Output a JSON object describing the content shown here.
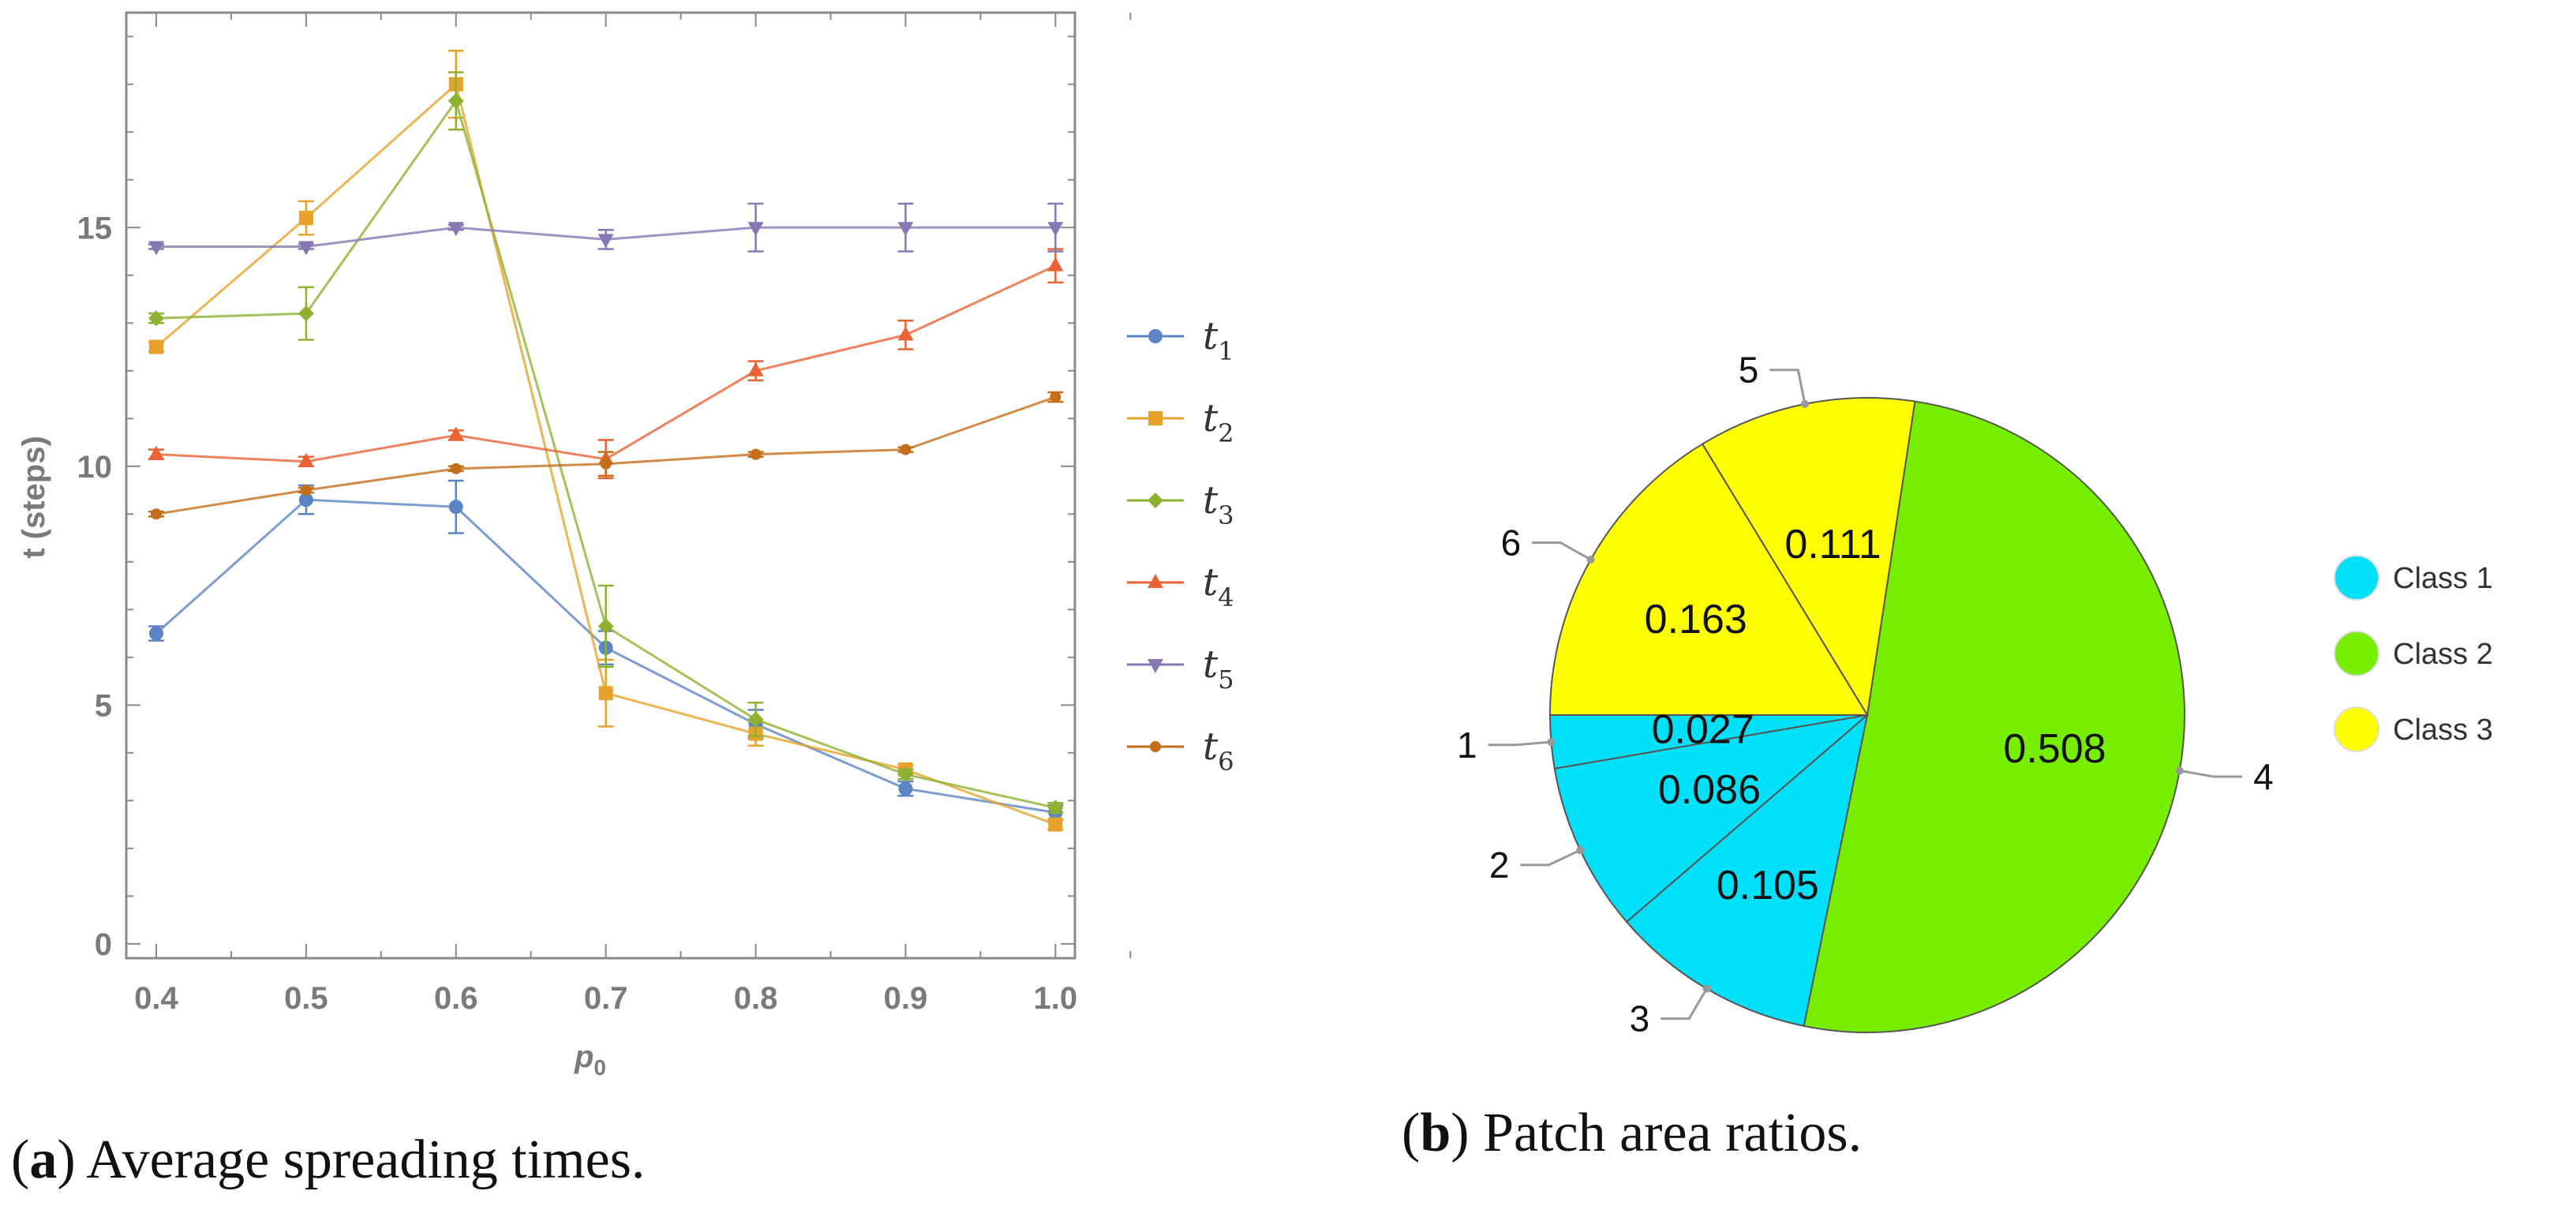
{
  "captions": {
    "a": {
      "letter": "a",
      "text": "Average spreading times."
    },
    "b": {
      "letter": "b",
      "text": "Patch area ratios."
    }
  },
  "chart_data": [
    {
      "type": "line",
      "xlabel_main": "p",
      "xlabel_sub": "0",
      "ylabel": "t (steps)",
      "x": [
        0.4,
        0.5,
        0.6,
        0.7,
        0.8,
        0.9,
        1.0
      ],
      "xticklabels": [
        "0.4",
        "0.5",
        "0.6",
        "0.7",
        "0.8",
        "0.9",
        "1.0"
      ],
      "yticks": [
        0,
        5,
        10,
        15
      ],
      "xlim": [
        0.38,
        1.013
      ],
      "ylim": [
        -0.3,
        19.5
      ],
      "series": [
        {
          "name": "t",
          "sub": "1",
          "color": "#5b84c4",
          "marker": "circle",
          "values": [
            6.5,
            9.3,
            9.15,
            6.2,
            4.6,
            3.25,
            2.75
          ],
          "err": [
            0.15,
            0.3,
            0.55,
            0.35,
            0.3,
            0.15,
            0.15
          ]
        },
        {
          "name": "t",
          "sub": "2",
          "color": "#e7a22b",
          "marker": "square",
          "values": [
            12.5,
            15.2,
            18.0,
            5.25,
            4.4,
            3.65,
            2.5
          ],
          "err": [
            0.1,
            0.35,
            0.7,
            0.7,
            0.25,
            0.1,
            0.1
          ]
        },
        {
          "name": "t",
          "sub": "3",
          "color": "#8fb131",
          "marker": "diamond",
          "values": [
            13.1,
            13.2,
            17.65,
            6.65,
            4.7,
            3.55,
            2.85
          ],
          "err": [
            0.1,
            0.55,
            0.6,
            0.85,
            0.35,
            0.1,
            0.1
          ]
        },
        {
          "name": "t",
          "sub": "4",
          "color": "#eb6235",
          "marker": "triangle-up",
          "values": [
            10.25,
            10.1,
            10.65,
            10.15,
            12.0,
            12.75,
            14.2
          ],
          "err": [
            0.1,
            0.1,
            0.1,
            0.4,
            0.2,
            0.3,
            0.35
          ]
        },
        {
          "name": "t",
          "sub": "5",
          "color": "#8778b3",
          "marker": "triangle-down",
          "values": [
            14.6,
            14.6,
            15.0,
            14.75,
            15.0,
            15.0,
            15.0
          ],
          "err": [
            0.05,
            0.05,
            0.05,
            0.2,
            0.5,
            0.5,
            0.5
          ]
        },
        {
          "name": "t",
          "sub": "6",
          "color": "#c56e1a",
          "marker": "circle-small",
          "values": [
            9.0,
            9.5,
            9.95,
            10.05,
            10.25,
            10.35,
            11.45
          ],
          "err": [
            0.05,
            0.05,
            0.05,
            0.25,
            0.05,
            0.05,
            0.1
          ]
        }
      ]
    },
    {
      "type": "pie",
      "slices": [
        {
          "index": "1",
          "value": 0.027,
          "label": "0.027",
          "class": "Class 1"
        },
        {
          "index": "2",
          "value": 0.086,
          "label": "0.086",
          "class": "Class 1"
        },
        {
          "index": "3",
          "value": 0.105,
          "label": "0.105",
          "class": "Class 1"
        },
        {
          "index": "4",
          "value": 0.508,
          "label": "0.508",
          "class": "Class 2"
        },
        {
          "index": "5",
          "value": 0.111,
          "label": "0.111",
          "class": "Class 3"
        },
        {
          "index": "6",
          "value": 0.163,
          "label": "0.163",
          "class": "Class 3"
        }
      ],
      "legend": [
        {
          "label": "Class 1",
          "color": "#00e0f8"
        },
        {
          "label": "Class 2",
          "color": "#77ee00"
        },
        {
          "label": "Class 3",
          "color": "#ffff00"
        }
      ]
    }
  ]
}
